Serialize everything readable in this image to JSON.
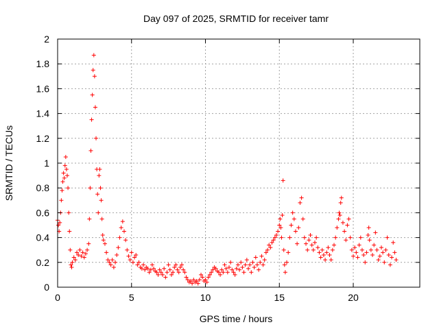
{
  "chart_data": {
    "type": "scatter",
    "title": "Day 097 of 2025, SRMTID for receiver tamr",
    "xlabel": "GPS time / hours",
    "ylabel": "SRMTID / TECUs",
    "xlim": [
      0,
      24.5
    ],
    "ylim": [
      0,
      2
    ],
    "x_ticks": [
      0,
      5,
      10,
      15,
      20
    ],
    "x_tick_labels": [
      "0",
      "5",
      "10",
      "15",
      "20"
    ],
    "y_ticks": [
      0,
      0.2,
      0.4,
      0.6,
      0.8,
      1,
      1.2,
      1.4,
      1.6,
      1.8,
      2
    ],
    "y_tick_labels": [
      "0",
      "0.2",
      "0.4",
      "0.6",
      "0.8",
      "1",
      "1.2",
      "1.4",
      "1.6",
      "1.8",
      "2"
    ],
    "grid": true,
    "marker": "plus",
    "color": "#ff0000",
    "series": [
      {
        "name": "SRMTID",
        "points": [
          [
            0.0,
            0.54
          ],
          [
            0.05,
            0.5
          ],
          [
            0.1,
            0.45
          ],
          [
            0.15,
            0.52
          ],
          [
            0.2,
            0.6
          ],
          [
            0.25,
            0.7
          ],
          [
            0.3,
            0.78
          ],
          [
            0.35,
            0.85
          ],
          [
            0.4,
            0.92
          ],
          [
            0.45,
            0.88
          ],
          [
            0.5,
            0.98
          ],
          [
            0.55,
            1.05
          ],
          [
            0.6,
            0.95
          ],
          [
            0.65,
            0.9
          ],
          [
            0.7,
            0.8
          ],
          [
            0.75,
            0.6
          ],
          [
            0.8,
            0.45
          ],
          [
            0.85,
            0.3
          ],
          [
            0.9,
            0.18
          ],
          [
            0.95,
            0.16
          ],
          [
            1.0,
            0.2
          ],
          [
            1.1,
            0.24
          ],
          [
            1.2,
            0.22
          ],
          [
            1.3,
            0.28
          ],
          [
            1.4,
            0.26
          ],
          [
            1.5,
            0.3
          ],
          [
            1.6,
            0.25
          ],
          [
            1.7,
            0.28
          ],
          [
            1.8,
            0.24
          ],
          [
            1.9,
            0.27
          ],
          [
            2.0,
            0.3
          ],
          [
            2.1,
            0.35
          ],
          [
            2.15,
            0.55
          ],
          [
            2.2,
            0.8
          ],
          [
            2.25,
            1.1
          ],
          [
            2.3,
            1.35
          ],
          [
            2.35,
            1.55
          ],
          [
            2.4,
            1.75
          ],
          [
            2.45,
            1.87
          ],
          [
            2.5,
            1.7
          ],
          [
            2.55,
            1.45
          ],
          [
            2.6,
            1.2
          ],
          [
            2.65,
            0.95
          ],
          [
            2.7,
            0.75
          ],
          [
            2.75,
            0.6
          ],
          [
            2.8,
            0.9
          ],
          [
            2.85,
            0.95
          ],
          [
            2.9,
            0.8
          ],
          [
            2.95,
            0.7
          ],
          [
            3.0,
            0.55
          ],
          [
            3.05,
            0.42
          ],
          [
            3.1,
            0.38
          ],
          [
            3.2,
            0.35
          ],
          [
            3.3,
            0.28
          ],
          [
            3.4,
            0.22
          ],
          [
            3.5,
            0.2
          ],
          [
            3.6,
            0.18
          ],
          [
            3.7,
            0.22
          ],
          [
            3.8,
            0.16
          ],
          [
            3.9,
            0.2
          ],
          [
            4.0,
            0.26
          ],
          [
            4.1,
            0.32
          ],
          [
            4.2,
            0.4
          ],
          [
            4.3,
            0.48
          ],
          [
            4.4,
            0.53
          ],
          [
            4.5,
            0.45
          ],
          [
            4.6,
            0.38
          ],
          [
            4.7,
            0.3
          ],
          [
            4.8,
            0.25
          ],
          [
            4.9,
            0.22
          ],
          [
            5.0,
            0.28
          ],
          [
            5.1,
            0.2
          ],
          [
            5.2,
            0.24
          ],
          [
            5.3,
            0.26
          ],
          [
            5.4,
            0.18
          ],
          [
            5.5,
            0.2
          ],
          [
            5.6,
            0.16
          ],
          [
            5.7,
            0.15
          ],
          [
            5.8,
            0.18
          ],
          [
            5.9,
            0.14
          ],
          [
            6.0,
            0.16
          ],
          [
            6.1,
            0.15
          ],
          [
            6.2,
            0.12
          ],
          [
            6.3,
            0.14
          ],
          [
            6.4,
            0.18
          ],
          [
            6.5,
            0.15
          ],
          [
            6.6,
            0.13
          ],
          [
            6.7,
            0.12
          ],
          [
            6.8,
            0.1
          ],
          [
            6.9,
            0.14
          ],
          [
            7.0,
            0.12
          ],
          [
            7.1,
            0.1
          ],
          [
            7.2,
            0.15
          ],
          [
            7.3,
            0.08
          ],
          [
            7.4,
            0.12
          ],
          [
            7.5,
            0.18
          ],
          [
            7.6,
            0.14
          ],
          [
            7.7,
            0.1
          ],
          [
            7.8,
            0.12
          ],
          [
            7.9,
            0.16
          ],
          [
            8.0,
            0.18
          ],
          [
            8.1,
            0.14
          ],
          [
            8.2,
            0.12
          ],
          [
            8.3,
            0.16
          ],
          [
            8.4,
            0.18
          ],
          [
            8.5,
            0.14
          ],
          [
            8.6,
            0.12
          ],
          [
            8.7,
            0.08
          ],
          [
            8.8,
            0.06
          ],
          [
            8.9,
            0.04
          ],
          [
            9.0,
            0.05
          ],
          [
            9.1,
            0.03
          ],
          [
            9.2,
            0.06
          ],
          [
            9.3,
            0.04
          ],
          [
            9.4,
            0.05
          ],
          [
            9.5,
            0.03
          ],
          [
            9.6,
            0.06
          ],
          [
            9.7,
            0.1
          ],
          [
            9.8,
            0.08
          ],
          [
            9.9,
            0.05
          ],
          [
            10.0,
            0.06
          ],
          [
            10.1,
            0.04
          ],
          [
            10.2,
            0.08
          ],
          [
            10.3,
            0.1
          ],
          [
            10.4,
            0.12
          ],
          [
            10.5,
            0.14
          ],
          [
            10.6,
            0.16
          ],
          [
            10.7,
            0.15
          ],
          [
            10.8,
            0.13
          ],
          [
            10.9,
            0.12
          ],
          [
            11.0,
            0.1
          ],
          [
            11.1,
            0.14
          ],
          [
            11.2,
            0.12
          ],
          [
            11.3,
            0.18
          ],
          [
            11.4,
            0.15
          ],
          [
            11.5,
            0.12
          ],
          [
            11.6,
            0.16
          ],
          [
            11.7,
            0.2
          ],
          [
            11.8,
            0.14
          ],
          [
            11.9,
            0.12
          ],
          [
            12.0,
            0.1
          ],
          [
            12.1,
            0.15
          ],
          [
            12.2,
            0.18
          ],
          [
            12.3,
            0.14
          ],
          [
            12.4,
            0.2
          ],
          [
            12.5,
            0.16
          ],
          [
            12.6,
            0.12
          ],
          [
            12.7,
            0.18
          ],
          [
            12.8,
            0.22
          ],
          [
            12.9,
            0.15
          ],
          [
            13.0,
            0.18
          ],
          [
            13.1,
            0.12
          ],
          [
            13.2,
            0.2
          ],
          [
            13.3,
            0.16
          ],
          [
            13.4,
            0.24
          ],
          [
            13.5,
            0.18
          ],
          [
            13.6,
            0.14
          ],
          [
            13.7,
            0.2
          ],
          [
            13.8,
            0.25
          ],
          [
            13.9,
            0.18
          ],
          [
            14.0,
            0.22
          ],
          [
            14.1,
            0.28
          ],
          [
            14.2,
            0.3
          ],
          [
            14.3,
            0.34
          ],
          [
            14.4,
            0.32
          ],
          [
            14.5,
            0.36
          ],
          [
            14.6,
            0.38
          ],
          [
            14.7,
            0.4
          ],
          [
            14.8,
            0.42
          ],
          [
            14.9,
            0.45
          ],
          [
            15.0,
            0.5
          ],
          [
            15.05,
            0.55
          ],
          [
            15.1,
            0.48
          ],
          [
            15.15,
            0.4
          ],
          [
            15.2,
            0.58
          ],
          [
            15.25,
            0.86
          ],
          [
            15.3,
            0.3
          ],
          [
            15.35,
            0.18
          ],
          [
            15.4,
            0.12
          ],
          [
            15.5,
            0.2
          ],
          [
            15.6,
            0.28
          ],
          [
            15.7,
            0.4
          ],
          [
            15.8,
            0.5
          ],
          [
            15.9,
            0.6
          ],
          [
            16.0,
            0.55
          ],
          [
            16.1,
            0.45
          ],
          [
            16.2,
            0.35
          ],
          [
            16.3,
            0.48
          ],
          [
            16.4,
            0.68
          ],
          [
            16.5,
            0.72
          ],
          [
            16.6,
            0.55
          ],
          [
            16.7,
            0.4
          ],
          [
            16.8,
            0.35
          ],
          [
            16.9,
            0.3
          ],
          [
            17.0,
            0.38
          ],
          [
            17.1,
            0.42
          ],
          [
            17.2,
            0.34
          ],
          [
            17.3,
            0.3
          ],
          [
            17.4,
            0.36
          ],
          [
            17.5,
            0.4
          ],
          [
            17.6,
            0.32
          ],
          [
            17.7,
            0.28
          ],
          [
            17.8,
            0.24
          ],
          [
            17.9,
            0.3
          ],
          [
            18.0,
            0.26
          ],
          [
            18.1,
            0.22
          ],
          [
            18.2,
            0.28
          ],
          [
            18.3,
            0.32
          ],
          [
            18.4,
            0.26
          ],
          [
            18.5,
            0.22
          ],
          [
            18.6,
            0.3
          ],
          [
            18.7,
            0.34
          ],
          [
            18.8,
            0.4
          ],
          [
            18.9,
            0.48
          ],
          [
            19.0,
            0.55
          ],
          [
            19.05,
            0.6
          ],
          [
            19.1,
            0.58
          ],
          [
            19.15,
            0.68
          ],
          [
            19.2,
            0.72
          ],
          [
            19.3,
            0.52
          ],
          [
            19.4,
            0.45
          ],
          [
            19.5,
            0.38
          ],
          [
            19.6,
            0.5
          ],
          [
            19.7,
            0.55
          ],
          [
            19.8,
            0.4
          ],
          [
            19.9,
            0.3
          ],
          [
            20.0,
            0.25
          ],
          [
            20.1,
            0.32
          ],
          [
            20.2,
            0.28
          ],
          [
            20.3,
            0.24
          ],
          [
            20.4,
            0.34
          ],
          [
            20.5,
            0.4
          ],
          [
            20.6,
            0.3
          ],
          [
            20.7,
            0.26
          ],
          [
            20.8,
            0.2
          ],
          [
            20.9,
            0.28
          ],
          [
            21.0,
            0.42
          ],
          [
            21.05,
            0.48
          ],
          [
            21.1,
            0.38
          ],
          [
            21.2,
            0.3
          ],
          [
            21.3,
            0.26
          ],
          [
            21.4,
            0.34
          ],
          [
            21.5,
            0.44
          ],
          [
            21.6,
            0.3
          ],
          [
            21.7,
            0.22
          ],
          [
            21.8,
            0.25
          ],
          [
            21.9,
            0.32
          ],
          [
            22.0,
            0.28
          ],
          [
            22.1,
            0.2
          ],
          [
            22.2,
            0.3
          ],
          [
            22.3,
            0.4
          ],
          [
            22.4,
            0.26
          ],
          [
            22.5,
            0.18
          ],
          [
            22.6,
            0.24
          ],
          [
            22.7,
            0.36
          ],
          [
            22.8,
            0.28
          ],
          [
            22.9,
            0.22
          ]
        ]
      }
    ]
  }
}
